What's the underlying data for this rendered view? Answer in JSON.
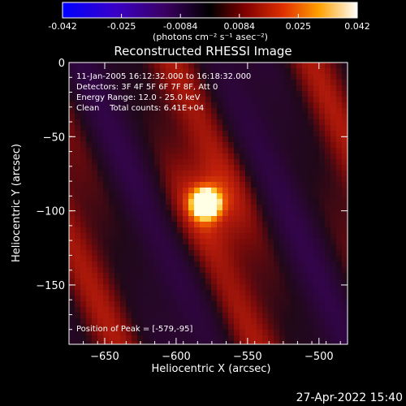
{
  "chart_data": {
    "type": "heatmap",
    "title": "Reconstructed RHESSI Image",
    "xlabel": "Heliocentric X (arcsec)",
    "ylabel": "Heliocentric Y (arcsec)",
    "xlim": [
      -675,
      -480
    ],
    "ylim": [
      -190,
      0
    ],
    "xticks": [
      -650,
      -600,
      -550,
      -500
    ],
    "yticks": [
      0,
      -50,
      -100,
      -150
    ],
    "info_lines": [
      "11-Jan-2005 16:12:32.000 to 16:18:32.000",
      "Detectors: 3F 4F 5F 6F 7F 8F, Att 0",
      "Energy Range: 12.0 - 25.0 keV",
      "Clean    Total counts: 6.41E+04"
    ],
    "peak_text": "Position of Peak = [-579,-95]",
    "peak": {
      "x": -579,
      "y": -95,
      "value": 0.042
    },
    "colorbar": {
      "ticks": [
        "-0.042",
        "-0.025",
        "-0.0084",
        "0.0084",
        "0.025",
        "0.042"
      ],
      "label": "(photons cm⁻² s⁻¹ asec⁻²)",
      "range": [
        -0.042,
        0.042
      ]
    },
    "timestamp": "27-Apr-2022 15:40"
  }
}
